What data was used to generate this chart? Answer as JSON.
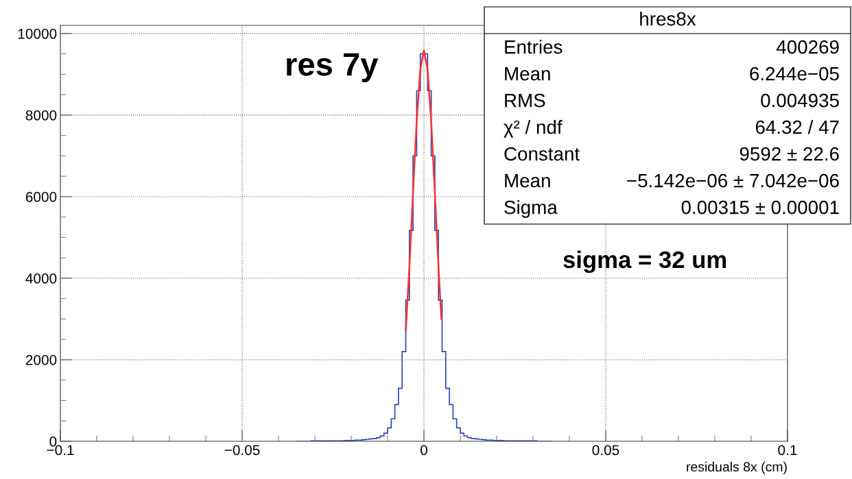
{
  "chart_data": {
    "type": "histogram",
    "xlabel": "residuals 8x (cm)",
    "bins": [
      -0.035,
      -0.034,
      -0.033,
      -0.032,
      -0.031,
      -0.03,
      -0.029,
      -0.028,
      -0.027,
      -0.026,
      -0.025,
      -0.024,
      -0.023,
      -0.022,
      -0.021,
      -0.02,
      -0.019,
      -0.018,
      -0.017,
      -0.016,
      -0.015,
      -0.014,
      -0.013,
      -0.012,
      -0.011,
      -0.01,
      -0.009,
      -0.008,
      -0.007,
      -0.006,
      -0.005,
      -0.004,
      -0.003,
      -0.002,
      -0.001,
      0.0,
      0.001,
      0.002,
      0.003,
      0.004,
      0.005,
      0.006,
      0.007,
      0.008,
      0.009,
      0.01,
      0.011,
      0.012,
      0.013,
      0.014,
      0.015,
      0.016,
      0.017,
      0.018,
      0.019,
      0.02,
      0.021,
      0.022,
      0.023,
      0.024,
      0.025,
      0.026,
      0.027,
      0.028,
      0.029,
      0.03,
      0.031,
      0.032,
      0.033,
      0.034,
      0.035
    ],
    "values": [
      0,
      0,
      0,
      0,
      10,
      10,
      10,
      10,
      10,
      10,
      10,
      10,
      10,
      20,
      20,
      20,
      30,
      30,
      40,
      50,
      60,
      70,
      90,
      130,
      200,
      330,
      550,
      900,
      1300,
      2200,
      3460,
      5170,
      7000,
      8600,
      9500,
      9500,
      8600,
      7000,
      5170,
      3460,
      2200,
      1300,
      900,
      550,
      330,
      200,
      130,
      90,
      70,
      60,
      50,
      40,
      30,
      30,
      20,
      20,
      20,
      10,
      10,
      10,
      10,
      10,
      10,
      10,
      10,
      10,
      0,
      0,
      0,
      0
    ],
    "color": "#2a45b5",
    "series": [
      {
        "type": "line",
        "color": "#ff3030",
        "x": [
          -0.005,
          -0.004,
          -0.003,
          -0.002,
          -0.001,
          0.0,
          0.001,
          0.002,
          0.003,
          0.004,
          0.0048
        ],
        "values": [
          2720,
          4280,
          6100,
          7840,
          9120,
          9590,
          9120,
          7840,
          6100,
          4280,
          3000
        ]
      }
    ],
    "xlim": [
      -0.1,
      0.1
    ],
    "xticks": [
      {
        "value": -0.1,
        "label": "−0.1"
      },
      {
        "value": -0.09,
        "label": null
      },
      {
        "value": -0.08,
        "label": null
      },
      {
        "value": -0.07,
        "label": null
      },
      {
        "value": -0.06,
        "label": null
      },
      {
        "value": -0.05,
        "label": "−0.05"
      },
      {
        "value": -0.04,
        "label": null
      },
      {
        "value": -0.03,
        "label": null
      },
      {
        "value": -0.02,
        "label": null
      },
      {
        "value": -0.01,
        "label": null
      },
      0,
      {
        "value": 0.01,
        "label": null
      },
      {
        "value": 0.02,
        "label": null
      },
      {
        "value": 0.03,
        "label": null
      },
      {
        "value": 0.04,
        "label": null
      },
      0.05,
      {
        "value": 0.06,
        "label": null
      },
      {
        "value": 0.07,
        "label": null
      },
      {
        "value": 0.08,
        "label": null
      },
      {
        "value": 0.09,
        "label": null
      },
      0.1
    ],
    "ylim": [
      0,
      10200
    ],
    "yticks": [
      0,
      {
        "value": 500,
        "label": null
      },
      {
        "value": 1000,
        "label": null
      },
      {
        "value": 1500,
        "label": null
      },
      2000,
      {
        "value": 2500,
        "label": null
      },
      {
        "value": 3000,
        "label": null
      },
      {
        "value": 3500,
        "label": null
      },
      4000,
      {
        "value": 4500,
        "label": null
      },
      {
        "value": 5000,
        "label": null
      },
      {
        "value": 5500,
        "label": null
      },
      6000,
      {
        "value": 6500,
        "label": null
      },
      {
        "value": 7000,
        "label": null
      },
      {
        "value": 7500,
        "label": null
      },
      8000,
      {
        "value": 8500,
        "label": null
      },
      {
        "value": 9000,
        "label": null
      },
      {
        "value": 9500,
        "label": null
      },
      10000
    ],
    "grid": true,
    "annotations": [
      "res 7y",
      "sigma = 32 um",
      "hres8x",
      "Entries",
      "400269",
      "Mean",
      "6.244e−05",
      "RMS",
      "0.004935",
      "χ² / ndf",
      "64.32 / 47",
      "Constant",
      "9592 ± 22.6",
      "Mean",
      "−5.142e−06 ± 7.042e−06",
      "Sigma",
      "0.00315 ± 0.00001"
    ]
  }
}
